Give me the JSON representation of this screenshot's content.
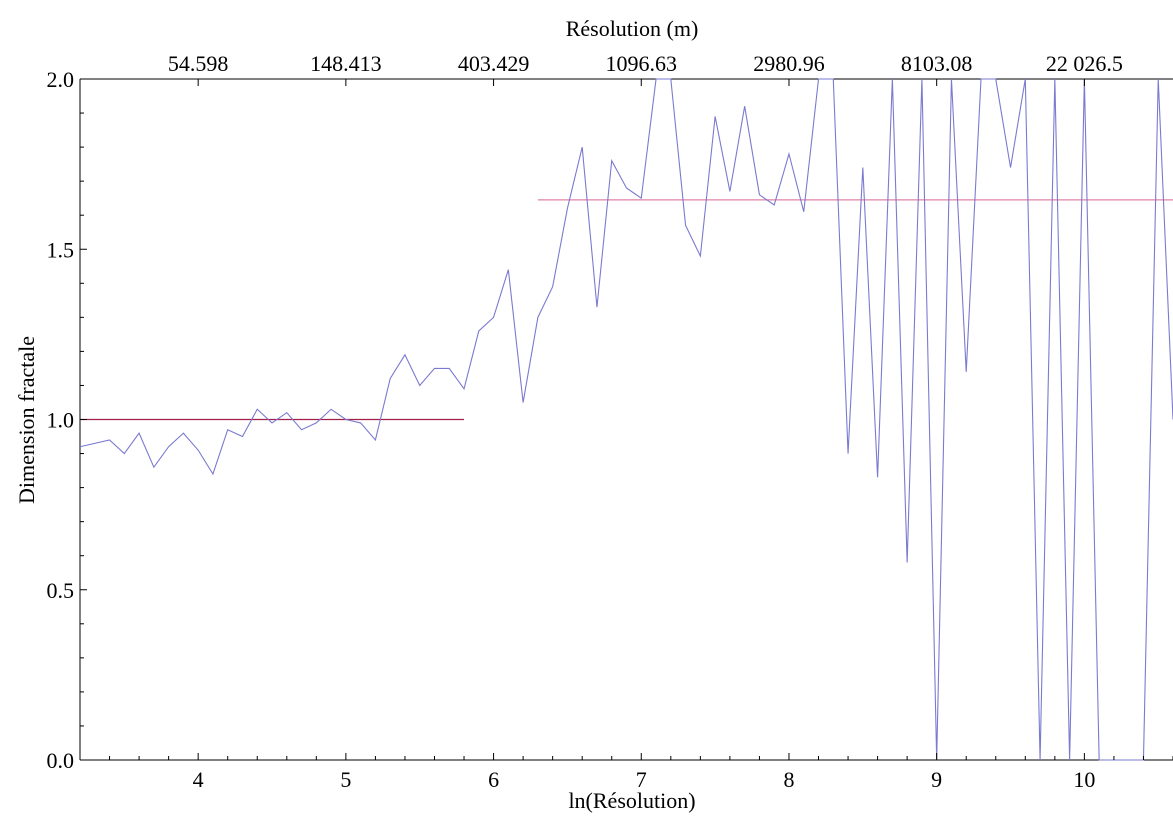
{
  "chart_data": {
    "type": "line",
    "xlabel": "ln(Résolution)",
    "ylabel": "Dimension fractale",
    "top_axis_label": "Résolution (m)",
    "xlim": [
      3.2,
      10.6
    ],
    "ylim": [
      0.0,
      2.0
    ],
    "x_ticks": [
      4,
      5,
      6,
      7,
      8,
      9,
      10
    ],
    "y_ticks": [
      0.0,
      0.5,
      1.0,
      1.5,
      2.0
    ],
    "y_tick_labels": [
      "0.0",
      "0.5",
      "1.0",
      "1.5",
      "2.0"
    ],
    "top_ticks": [
      {
        "value": 4,
        "label": "54.598"
      },
      {
        "value": 5,
        "label": "148.413"
      },
      {
        "value": 6,
        "label": "403.429"
      },
      {
        "value": 7,
        "label": "1096.63"
      },
      {
        "value": 8,
        "label": "2980.96"
      },
      {
        "value": 9,
        "label": "8103.08"
      },
      {
        "value": 10,
        "label": "22 026.5"
      }
    ],
    "series": [
      {
        "color": "#7a7ad0",
        "x": [
          3.2,
          3.4,
          3.5,
          3.6,
          3.7,
          3.8,
          3.9,
          4.0,
          4.1,
          4.2,
          4.3,
          4.4,
          4.5,
          4.6,
          4.7,
          4.8,
          4.9,
          5.0,
          5.1,
          5.2,
          5.3,
          5.4,
          5.5,
          5.6,
          5.7,
          5.8,
          5.9,
          6.0,
          6.1,
          6.2,
          6.3,
          6.4,
          6.5,
          6.6,
          6.7,
          6.8,
          6.9,
          7.0,
          7.1,
          7.2,
          7.3,
          7.4,
          7.5,
          7.6,
          7.7,
          7.8,
          7.9,
          8.0,
          8.1,
          8.2,
          8.3,
          8.4,
          8.5,
          8.6,
          8.7,
          8.8,
          8.9,
          9.0,
          9.1,
          9.2,
          9.3,
          9.4,
          9.5,
          9.6,
          9.7,
          9.8,
          9.9,
          10.0,
          10.1,
          10.2,
          10.3,
          10.4,
          10.5,
          10.6
        ],
        "y": [
          0.92,
          0.94,
          0.9,
          0.96,
          0.86,
          0.92,
          0.96,
          0.91,
          0.84,
          0.97,
          0.95,
          1.03,
          0.99,
          1.02,
          0.97,
          0.99,
          1.03,
          1.0,
          0.99,
          0.94,
          1.12,
          1.19,
          1.1,
          1.15,
          1.15,
          1.09,
          1.26,
          1.3,
          1.44,
          1.05,
          1.3,
          1.39,
          1.62,
          1.8,
          1.33,
          1.76,
          1.68,
          1.65,
          2.0,
          2.0,
          1.57,
          1.48,
          1.89,
          1.67,
          1.92,
          1.66,
          1.63,
          1.78,
          1.61,
          2.0,
          2.0,
          0.9,
          1.74,
          0.83,
          2.0,
          0.58,
          2.0,
          0.0,
          2.0,
          1.14,
          2.0,
          2.0,
          1.74,
          2.0,
          0.0,
          2.0,
          0.0,
          2.0,
          0.0,
          0.0,
          0.0,
          0.0,
          2.0,
          1.0
        ]
      }
    ],
    "reference_lines": [
      {
        "x_start": 3.2,
        "x_end": 5.8,
        "y": 1.0,
        "color": "#a0204a"
      },
      {
        "x_start": 6.3,
        "x_end": 10.6,
        "y": 1.645,
        "color": "#e080a8"
      }
    ]
  }
}
